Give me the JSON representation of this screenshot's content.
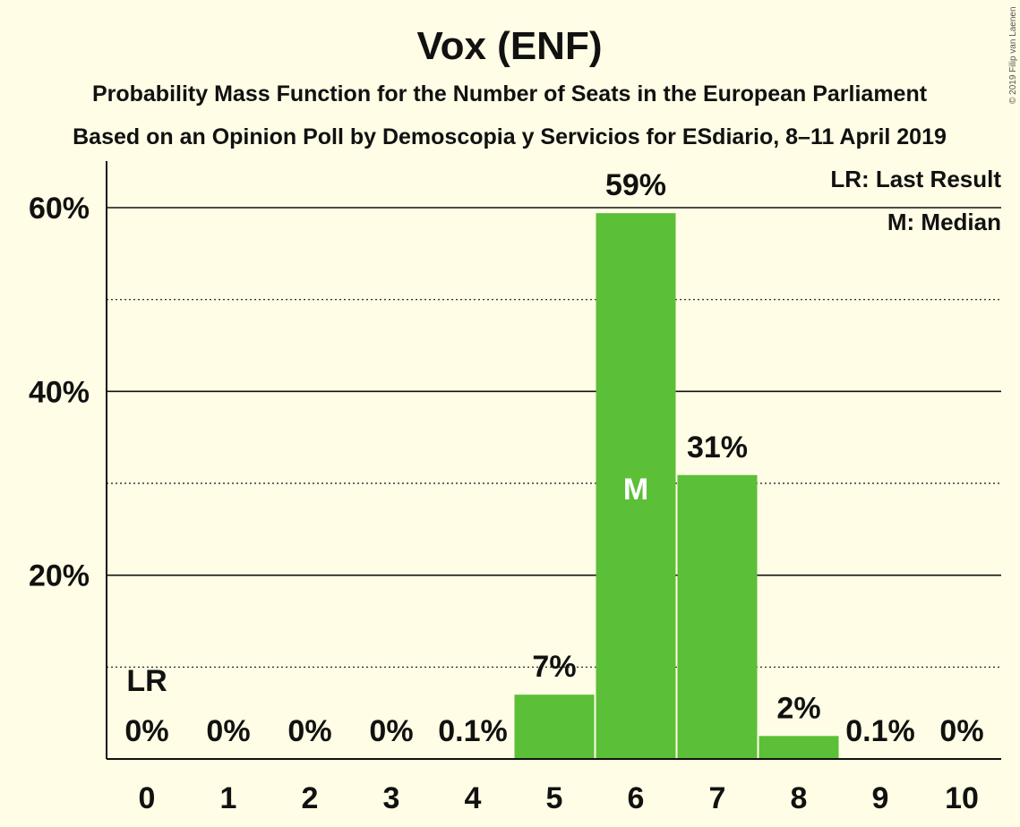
{
  "colors": {
    "background": "#FFFDE5",
    "bar": "#5BBF38",
    "text": "#111111"
  },
  "chart_data": {
    "type": "bar",
    "title": "Vox (ENF)",
    "subtitle1": "Probability Mass Function for the Number of Seats in the European Parliament",
    "subtitle2": "Based on an Opinion Poll by Demoscopia y Servicios for ESdiario, 8–11 April 2019",
    "copyright": "© 2019 Filip van Laenen",
    "categories": [
      "0",
      "1",
      "2",
      "3",
      "4",
      "5",
      "6",
      "7",
      "8",
      "9",
      "10"
    ],
    "values": [
      0,
      0,
      0,
      0,
      0.1,
      7,
      59.4,
      30.9,
      2.5,
      0.1,
      0
    ],
    "value_labels": [
      "0%",
      "0%",
      "0%",
      "0%",
      "0.1%",
      "7%",
      "59%",
      "31%",
      "2%",
      "0.1%",
      "0%"
    ],
    "ylim": [
      0,
      65
    ],
    "yticks": [
      {
        "value": 20,
        "label": "20%"
      },
      {
        "value": 40,
        "label": "40%"
      },
      {
        "value": 60,
        "label": "60%"
      }
    ],
    "minor_gridlines": [
      10,
      30,
      50
    ],
    "last_result": {
      "category": "0",
      "label": "LR"
    },
    "median": {
      "category": "6",
      "label": "M"
    },
    "legend": [
      "LR: Last Result",
      "M: Median"
    ],
    "legend_position": "top-right",
    "grid": true
  }
}
